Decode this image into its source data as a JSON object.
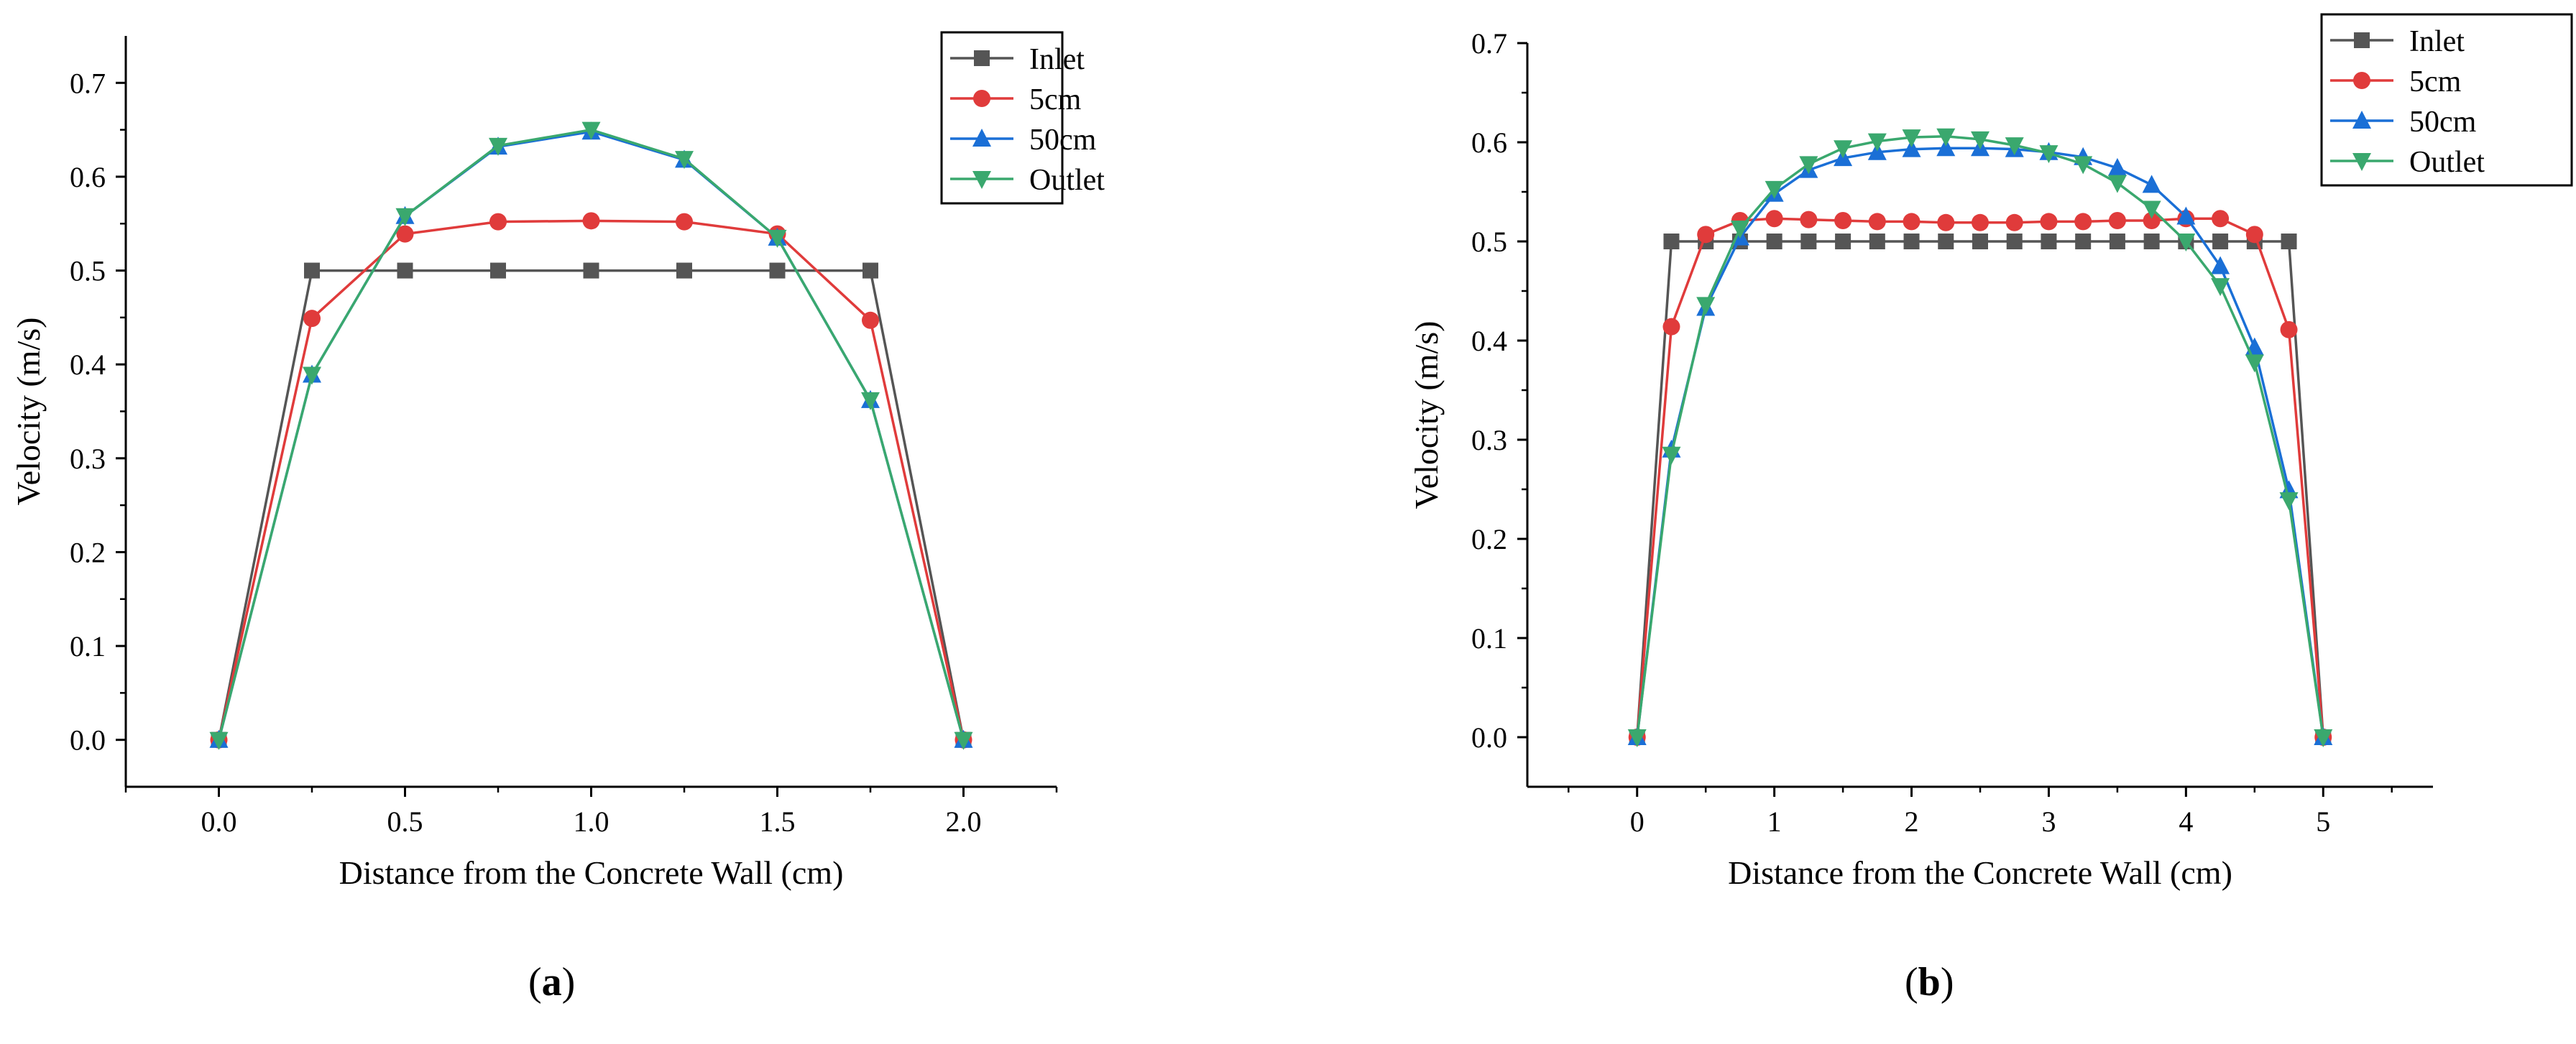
{
  "colors": {
    "inlet": "#555555",
    "5cm": "#e03b3b",
    "50cm": "#1a6fd6",
    "outlet": "#3aa86e"
  },
  "captions": {
    "a": {
      "open": "(",
      "letter": "a",
      "close": ")"
    },
    "b": {
      "open": "(",
      "letter": "b",
      "close": ")"
    }
  },
  "chart_data": [
    {
      "id": "a",
      "type": "line",
      "title": "",
      "xlabel": "Distance from the Concrete Wall (cm)",
      "ylabel": "Velocity (m/s)",
      "xlim": [
        -0.25,
        2.25
      ],
      "ylim": [
        -0.05,
        0.75
      ],
      "xticks": [
        0.0,
        0.5,
        1.0,
        1.5,
        2.0
      ],
      "xtick_labels": [
        "0.0",
        "0.5",
        "1.0",
        "1.5",
        "2.0"
      ],
      "yticks": [
        0.0,
        0.1,
        0.2,
        0.3,
        0.4,
        0.5,
        0.6,
        0.7
      ],
      "ytick_labels": [
        "0.0",
        "0.1",
        "0.2",
        "0.3",
        "0.4",
        "0.5",
        "0.6",
        "0.7"
      ],
      "legend": "top-right",
      "x": [
        0.0,
        0.25,
        0.5,
        0.75,
        1.0,
        1.25,
        1.5,
        1.75,
        2.0
      ],
      "series": [
        {
          "name": "Inlet",
          "marker": "square",
          "color": "#555555",
          "values": [
            0.0,
            0.5,
            0.5,
            0.5,
            0.5,
            0.5,
            0.5,
            0.5,
            0.0
          ]
        },
        {
          "name": "5cm",
          "marker": "circle",
          "color": "#e03b3b",
          "values": [
            0.0,
            0.449,
            0.539,
            0.552,
            0.553,
            0.552,
            0.539,
            0.447,
            0.0
          ]
        },
        {
          "name": "50cm",
          "marker": "triangle-up",
          "color": "#1a6fd6",
          "values": [
            0.0,
            0.389,
            0.558,
            0.632,
            0.648,
            0.618,
            0.535,
            0.362,
            0.0
          ]
        },
        {
          "name": "Outlet",
          "marker": "triangle-down",
          "color": "#3aa86e",
          "values": [
            0.0,
            0.389,
            0.558,
            0.633,
            0.65,
            0.619,
            0.535,
            0.362,
            0.0
          ]
        }
      ]
    },
    {
      "id": "b",
      "type": "line",
      "title": "",
      "xlabel": "Distance from the Concrete Wall (cm)",
      "ylabel": "Velocity (m/s)",
      "xlim": [
        -0.8,
        5.8
      ],
      "ylim": [
        -0.05,
        0.7
      ],
      "xticks": [
        0,
        1,
        2,
        3,
        4,
        5
      ],
      "xtick_labels": [
        "0",
        "1",
        "2",
        "3",
        "4",
        "5"
      ],
      "yticks": [
        0.0,
        0.1,
        0.2,
        0.3,
        0.4,
        0.5,
        0.6,
        0.7
      ],
      "ytick_labels": [
        "0.0",
        "0.1",
        "0.2",
        "0.3",
        "0.4",
        "0.5",
        "0.6",
        "0.7"
      ],
      "legend": "top-right",
      "x": [
        0,
        0.25,
        0.5,
        0.75,
        1.0,
        1.25,
        1.5,
        1.75,
        2.0,
        2.25,
        2.5,
        2.75,
        3.0,
        3.25,
        3.5,
        3.75,
        4.0,
        4.25,
        4.5,
        4.75,
        5.0
      ],
      "series": [
        {
          "name": "Inlet",
          "marker": "square",
          "color": "#555555",
          "values": [
            0.0,
            0.5,
            0.5,
            0.5,
            0.5,
            0.5,
            0.5,
            0.5,
            0.5,
            0.5,
            0.5,
            0.5,
            0.5,
            0.5,
            0.5,
            0.5,
            0.5,
            0.5,
            0.5,
            0.5,
            0.0
          ]
        },
        {
          "name": "5cm",
          "marker": "circle",
          "color": "#e03b3b",
          "values": [
            0.0,
            0.414,
            0.507,
            0.521,
            0.523,
            0.522,
            0.521,
            0.52,
            0.52,
            0.519,
            0.519,
            0.519,
            0.52,
            0.52,
            0.521,
            0.521,
            0.523,
            0.523,
            0.507,
            0.411,
            0.0
          ]
        },
        {
          "name": "50cm",
          "marker": "triangle-up",
          "color": "#1a6fd6",
          "values": [
            0.0,
            0.29,
            0.433,
            0.504,
            0.548,
            0.572,
            0.584,
            0.59,
            0.593,
            0.594,
            0.594,
            0.593,
            0.59,
            0.585,
            0.574,
            0.557,
            0.525,
            0.475,
            0.393,
            0.249,
            0.0
          ]
        },
        {
          "name": "Outlet",
          "marker": "triangle-down",
          "color": "#3aa86e",
          "values": [
            0.0,
            0.285,
            0.436,
            0.513,
            0.553,
            0.578,
            0.594,
            0.601,
            0.605,
            0.606,
            0.603,
            0.597,
            0.589,
            0.578,
            0.559,
            0.533,
            0.5,
            0.455,
            0.378,
            0.239,
            0.0
          ]
        }
      ]
    }
  ]
}
